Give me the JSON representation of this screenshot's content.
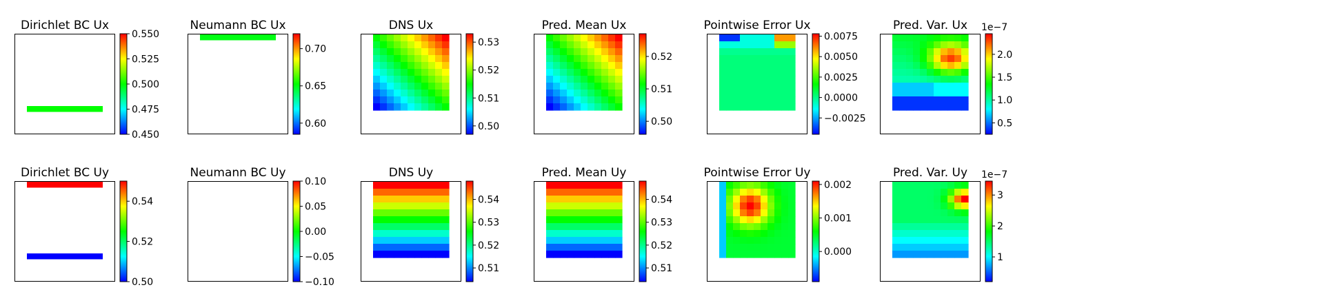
{
  "chart_data": [
    {
      "type": "heatmap",
      "title": "Dirichlet BC Ux",
      "row": 0,
      "col": 0,
      "colorbar": {
        "min": 0.45,
        "max": 0.55,
        "ticks": [
          "0.450",
          "0.475",
          "0.500",
          "0.525",
          "0.550"
        ],
        "tick_values": [
          0.45,
          0.475,
          0.5,
          0.525,
          0.55
        ]
      },
      "field": {
        "kind": "bands",
        "bands": [
          {
            "edge": "bottom",
            "row": 10,
            "value": 0.5
          }
        ]
      }
    },
    {
      "type": "heatmap",
      "title": "Neumann BC Ux",
      "row": 0,
      "col": 1,
      "colorbar": {
        "min": 0.585,
        "max": 0.72,
        "ticks": [
          "0.60",
          "0.65",
          "0.70"
        ],
        "tick_values": [
          0.6,
          0.65,
          0.7
        ]
      },
      "field": {
        "kind": "bands",
        "bands": [
          {
            "edge": "top",
            "row": 0,
            "value": 0.65
          }
        ]
      }
    },
    {
      "type": "heatmap",
      "title": "DNS Ux",
      "row": 0,
      "col": 2,
      "colorbar": {
        "min": 0.497,
        "max": 0.533,
        "ticks": [
          "0.50",
          "0.51",
          "0.52",
          "0.53"
        ],
        "tick_values": [
          0.5,
          0.51,
          0.52,
          0.53
        ]
      },
      "field": {
        "kind": "diag",
        "max": 0.531,
        "min": 0.499
      }
    },
    {
      "type": "heatmap",
      "title": "Pred. Mean Ux",
      "row": 0,
      "col": 3,
      "colorbar": {
        "min": 0.496,
        "max": 0.527,
        "ticks": [
          "0.50",
          "0.51",
          "0.52"
        ],
        "tick_values": [
          0.5,
          0.51,
          0.52
        ]
      },
      "field": {
        "kind": "diag",
        "max": 0.526,
        "min": 0.497
      }
    },
    {
      "type": "heatmap",
      "title": "Pointwise Error Ux",
      "row": 0,
      "col": 4,
      "colorbar": {
        "min": -0.0045,
        "max": 0.0078,
        "ticks": [
          "−0.0025",
          "0.0000",
          "0.0025",
          "0.0050",
          "0.0075"
        ],
        "tick_values": [
          -0.0025,
          0,
          0.0025,
          0.005,
          0.0075
        ]
      },
      "field": {
        "kind": "errx"
      }
    },
    {
      "type": "heatmap",
      "title": "Pred. Var. Ux",
      "row": 0,
      "col": 5,
      "colorbar": {
        "min": 0.25,
        "max": 2.45,
        "offset": "1e−7",
        "ticks": [
          "0.5",
          "1.0",
          "1.5",
          "2.0"
        ],
        "tick_values": [
          0.5,
          1.0,
          1.5,
          2.0
        ]
      },
      "field": {
        "kind": "varx"
      }
    },
    {
      "type": "heatmap",
      "title": "Dirichlet BC Uy",
      "row": 1,
      "col": 0,
      "colorbar": {
        "min": 0.5,
        "max": 0.55,
        "ticks": [
          "0.50",
          "0.52",
          "0.54"
        ],
        "tick_values": [
          0.5,
          0.52,
          0.54
        ]
      },
      "field": {
        "kind": "bands",
        "bands": [
          {
            "edge": "top",
            "row": 0,
            "value": 0.55
          },
          {
            "edge": "bottom",
            "row": 10,
            "value": 0.5
          }
        ]
      }
    },
    {
      "type": "heatmap",
      "title": "Neumann BC Uy",
      "row": 1,
      "col": 1,
      "colorbar": {
        "min": -0.1,
        "max": 0.1,
        "ticks": [
          "−0.10",
          "−0.05",
          "0.00",
          "0.05",
          "0.10"
        ],
        "tick_values": [
          -0.1,
          -0.05,
          0,
          0.05,
          0.1
        ]
      },
      "field": {
        "kind": "bands",
        "bands": []
      }
    },
    {
      "type": "heatmap",
      "title": "DNS Uy",
      "row": 1,
      "col": 2,
      "colorbar": {
        "min": 0.504,
        "max": 0.548,
        "ticks": [
          "0.51",
          "0.52",
          "0.53",
          "0.54"
        ],
        "tick_values": [
          0.51,
          0.52,
          0.53,
          0.54
        ]
      },
      "field": {
        "kind": "rows",
        "max": 0.547,
        "min": 0.506
      }
    },
    {
      "type": "heatmap",
      "title": "Pred. Mean Uy",
      "row": 1,
      "col": 3,
      "colorbar": {
        "min": 0.504,
        "max": 0.548,
        "ticks": [
          "0.51",
          "0.52",
          "0.53",
          "0.54"
        ],
        "tick_values": [
          0.51,
          0.52,
          0.53,
          0.54
        ]
      },
      "field": {
        "kind": "rows",
        "max": 0.547,
        "min": 0.505
      }
    },
    {
      "type": "heatmap",
      "title": "Pointwise Error Uy",
      "row": 1,
      "col": 4,
      "colorbar": {
        "min": -0.0009,
        "max": 0.0021,
        "ticks": [
          "0.000",
          "0.001",
          "0.002"
        ],
        "tick_values": [
          0,
          0.001,
          0.002
        ]
      },
      "field": {
        "kind": "erry"
      }
    },
    {
      "type": "heatmap",
      "title": "Pred. Var. Uy",
      "row": 1,
      "col": 5,
      "colorbar": {
        "min": 0.2,
        "max": 3.45,
        "offset": "1e−7",
        "ticks": [
          "1",
          "2",
          "3"
        ],
        "tick_values": [
          1,
          2,
          3
        ]
      },
      "field": {
        "kind": "vary"
      }
    }
  ]
}
